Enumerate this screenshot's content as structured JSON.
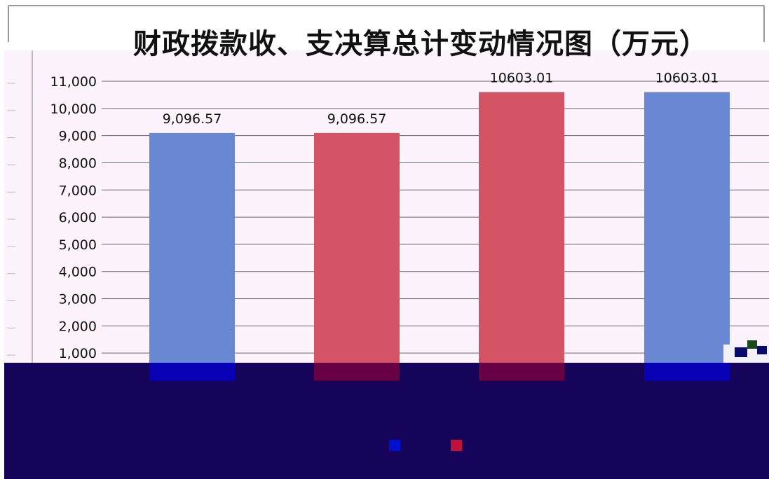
{
  "chart_data": {
    "type": "bar",
    "title": "财政拨款收、支决算总计变动情况图（万元）",
    "categories": [
      "",
      "",
      "",
      ""
    ],
    "values": [
      9096.57,
      9096.57,
      10603.01,
      10603.01
    ],
    "data_labels": [
      "9,096.57",
      "9,096.57",
      "10603.01",
      "10603.01"
    ],
    "bar_colors": [
      "#6a87d4",
      "#d45466",
      "#d45466",
      "#6a87d4"
    ],
    "ylim": [
      0,
      11000
    ],
    "yticks": [
      {
        "value": 1000,
        "label": "1,000"
      },
      {
        "value": 2000,
        "label": "2,000"
      },
      {
        "value": 3000,
        "label": "3,000"
      },
      {
        "value": 4000,
        "label": "4,000"
      },
      {
        "value": 5000,
        "label": "5,000"
      },
      {
        "value": 6000,
        "label": "6,000"
      },
      {
        "value": 7000,
        "label": "7,000"
      },
      {
        "value": 8000,
        "label": "8,000"
      },
      {
        "value": 9000,
        "label": "9,000"
      },
      {
        "value": 10000,
        "label": "10,000"
      },
      {
        "value": 11000,
        "label": "11,000"
      }
    ],
    "grid": true,
    "legend": {
      "placement": "bottom",
      "swatches": [
        "#0010d0",
        "#c0103c"
      ]
    },
    "colors": {
      "plot_background": "#fdf3fd",
      "gridline": "#666666",
      "occluded_band": "#16045a"
    }
  }
}
